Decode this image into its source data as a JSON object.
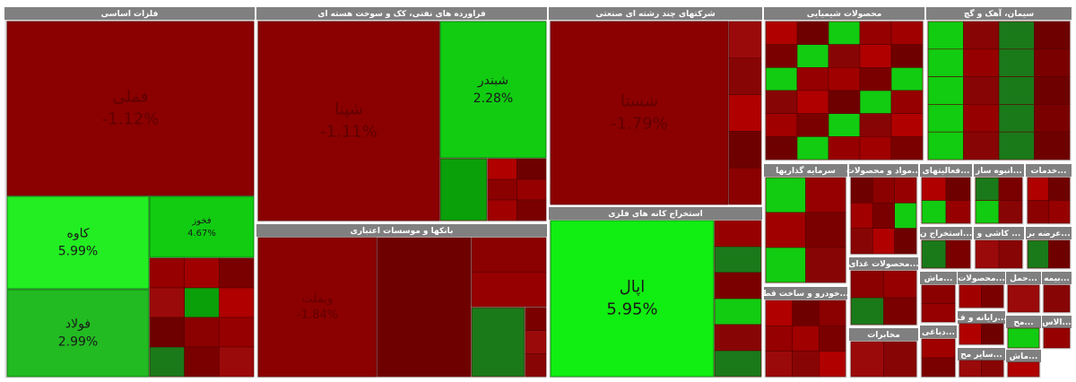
{
  "sectors": [
    {
      "title": "فلزات اساسی",
      "tiles": [
        {
          "symbol": "فملی",
          "change": "-1.12%"
        },
        {
          "symbol": "کاوه",
          "change": "5.99%"
        },
        {
          "symbol": "فخوز",
          "change": "4.67%"
        },
        {
          "symbol": "فولاد",
          "change": "2.99%"
        }
      ]
    },
    {
      "title": "فراورده های نفتی، کک و سوخت هسته ای",
      "tiles": [
        {
          "symbol": "شپنا",
          "change": "-1.11%"
        },
        {
          "symbol": "شبندر",
          "change": "2.28%"
        }
      ]
    },
    {
      "title": "شرکتهای چند رشته ای صنعتی",
      "tiles": [
        {
          "symbol": "شستا",
          "change": "-1.79%"
        }
      ]
    },
    {
      "title": "استخراج کانه های فلزی",
      "tiles": [
        {
          "symbol": "اپال",
          "change": "5.95%"
        }
      ]
    },
    {
      "title": "بانکها و موسسات اعتباری",
      "tiles": [
        {
          "symbol": "وبملت",
          "change": "-1.84%"
        }
      ]
    },
    {
      "title": "محصولات شیمیایی",
      "tiles": []
    },
    {
      "title": "سیمان، آهک و گچ",
      "tiles": []
    },
    {
      "title": "سرمایه گذاریها",
      "tiles": []
    },
    {
      "title": "خودرو و ساخت قط...",
      "tiles": []
    },
    {
      "title": "مواد و محصولات...",
      "tiles": []
    },
    {
      "title": "محصولات غذای...",
      "tiles": []
    },
    {
      "title": "مخابرات",
      "tiles": []
    },
    {
      "title": "فعالیتهای...",
      "tiles": []
    },
    {
      "title": "انبوه ساز...",
      "tiles": []
    },
    {
      "title": "خدمات...",
      "tiles": []
    },
    {
      "title": "استخراج ن...",
      "tiles": []
    },
    {
      "title": "کاشی و ...",
      "tiles": []
    },
    {
      "title": "عرضه بر...",
      "tiles": []
    },
    {
      "title": "ماش...",
      "tiles": []
    },
    {
      "title": "محصولات...",
      "tiles": []
    },
    {
      "title": "حمل...",
      "tiles": []
    },
    {
      "title": "بیمه...",
      "tiles": []
    },
    {
      "title": "رایانه و ف...",
      "tiles": []
    },
    {
      "title": "مح...",
      "tiles": []
    },
    {
      "title": "الاس...",
      "tiles": []
    },
    {
      "title": "دباغی...",
      "tiles": []
    },
    {
      "title": "سایر مح...",
      "tiles": []
    },
    {
      "title": "ماش...",
      "tiles": []
    }
  ]
}
